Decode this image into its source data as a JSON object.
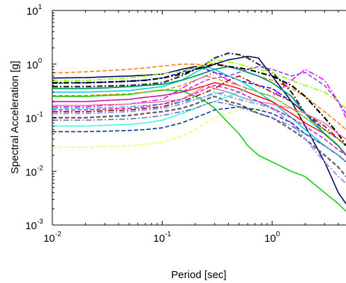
{
  "chart_data": {
    "type": "line",
    "title": "",
    "xlabel": "Period [sec]",
    "ylabel": "Spectral Acceleration [g]",
    "xscale": "log",
    "yscale": "log",
    "xlim": [
      0.01,
      4.7
    ],
    "ylim": [
      0.001,
      10
    ],
    "grid": false,
    "legend": "none",
    "x_ticks": [
      {
        "value": 0.01,
        "base": "10",
        "exp": "-2"
      },
      {
        "value": 0.1,
        "base": "10",
        "exp": "-1"
      },
      {
        "value": 1,
        "base": "10",
        "exp": "0"
      }
    ],
    "y_ticks": [
      {
        "value": 0.001,
        "base": "10",
        "exp": "-3"
      },
      {
        "value": 0.01,
        "base": "10",
        "exp": "-2"
      },
      {
        "value": 0.1,
        "base": "10",
        "exp": "-1"
      },
      {
        "value": 1,
        "base": "10",
        "exp": "0"
      },
      {
        "value": 10,
        "base": "10",
        "exp": "1"
      }
    ],
    "x": [
      0.01,
      0.02,
      0.03,
      0.05,
      0.07,
      0.1,
      0.15,
      0.2,
      0.25,
      0.3,
      0.4,
      0.5,
      0.6,
      0.75,
      1.0,
      1.5,
      2.0,
      3.0,
      4.0,
      4.7
    ],
    "series": [
      {
        "color": "#ff8000",
        "style": "dash",
        "width": 1.6,
        "values": [
          0.68,
          0.72,
          0.75,
          0.8,
          0.85,
          0.92,
          1.0,
          1.0,
          0.95,
          1.05,
          0.9,
          0.8,
          0.7,
          0.6,
          0.5,
          0.35,
          0.25,
          0.13,
          0.08,
          0.06
        ]
      },
      {
        "color": "#000066",
        "style": "solid",
        "width": 1.6,
        "values": [
          0.55,
          0.56,
          0.58,
          0.6,
          0.62,
          0.65,
          0.8,
          0.9,
          0.85,
          1.0,
          1.2,
          1.3,
          1.4,
          1.3,
          0.6,
          0.2,
          0.07,
          0.015,
          0.004,
          0.0025
        ]
      },
      {
        "color": "#00cc00",
        "style": "solid",
        "width": 1.5,
        "values": [
          0.25,
          0.25,
          0.26,
          0.27,
          0.3,
          0.33,
          0.32,
          0.25,
          0.2,
          0.15,
          0.08,
          0.05,
          0.03,
          0.02,
          0.015,
          0.01,
          0.008,
          0.004,
          0.0025,
          0.0018
        ]
      },
      {
        "color": "#e6ff66",
        "style": "dash",
        "width": 1.5,
        "values": [
          0.028,
          0.028,
          0.029,
          0.03,
          0.032,
          0.035,
          0.045,
          0.06,
          0.08,
          0.1,
          0.12,
          0.14,
          0.15,
          0.15,
          0.14,
          0.12,
          0.1,
          0.06,
          0.03,
          0.02
        ]
      },
      {
        "color": "#2b2b2b",
        "style": "dashdot",
        "width": 2.2,
        "values": [
          0.38,
          0.38,
          0.39,
          0.4,
          0.42,
          0.45,
          0.6,
          0.8,
          1.0,
          1.3,
          1.6,
          1.5,
          1.3,
          1.0,
          0.7,
          0.3,
          0.12,
          0.05,
          0.03,
          0.02
        ]
      },
      {
        "color": "#0000ff",
        "style": "dash",
        "width": 1.6,
        "values": [
          0.44,
          0.45,
          0.46,
          0.48,
          0.5,
          0.55,
          0.7,
          0.9,
          0.8,
          0.7,
          0.6,
          0.5,
          0.45,
          0.4,
          0.35,
          0.2,
          0.12,
          0.06,
          0.04,
          0.03
        ]
      },
      {
        "color": "#ff00ff",
        "style": "dashdot",
        "width": 1.6,
        "values": [
          0.16,
          0.16,
          0.17,
          0.18,
          0.2,
          0.22,
          0.35,
          0.5,
          0.6,
          0.7,
          0.5,
          0.4,
          0.35,
          0.3,
          0.25,
          0.5,
          0.8,
          0.5,
          0.2,
          0.1
        ]
      },
      {
        "color": "#00cccc",
        "style": "solid",
        "width": 1.5,
        "values": [
          0.3,
          0.3,
          0.31,
          0.32,
          0.35,
          0.38,
          0.5,
          0.7,
          0.9,
          0.8,
          0.6,
          0.5,
          0.4,
          0.3,
          0.2,
          0.1,
          0.06,
          0.03,
          0.02,
          0.015
        ]
      },
      {
        "color": "#ff0000",
        "style": "solid",
        "width": 1.5,
        "values": [
          0.2,
          0.2,
          0.21,
          0.22,
          0.24,
          0.26,
          0.3,
          0.35,
          0.4,
          0.45,
          0.4,
          0.35,
          0.3,
          0.25,
          0.2,
          0.12,
          0.08,
          0.05,
          0.03,
          0.02
        ]
      },
      {
        "color": "#666666",
        "style": "dash",
        "width": 2.4,
        "values": [
          0.1,
          0.1,
          0.105,
          0.11,
          0.12,
          0.13,
          0.15,
          0.18,
          0.22,
          0.25,
          0.2,
          0.18,
          0.15,
          0.12,
          0.1,
          0.06,
          0.04,
          0.02,
          0.012,
          0.008
        ]
      },
      {
        "color": "#9999ff",
        "style": "dashdot",
        "width": 2.2,
        "values": [
          0.12,
          0.12,
          0.125,
          0.13,
          0.14,
          0.15,
          0.18,
          0.22,
          0.25,
          0.3,
          0.25,
          0.22,
          0.2,
          0.18,
          0.15,
          0.08,
          0.04,
          0.015,
          0.008,
          0.006
        ]
      },
      {
        "color": "#99ff00",
        "style": "dashdot",
        "width": 1.8,
        "values": [
          0.5,
          0.5,
          0.52,
          0.55,
          0.6,
          0.65,
          0.75,
          0.85,
          1.0,
          1.2,
          1.1,
          1.0,
          0.9,
          0.8,
          0.7,
          0.5,
          0.4,
          0.3,
          0.2,
          0.15
        ]
      },
      {
        "color": "#9933ff",
        "style": "dash",
        "width": 1.6,
        "values": [
          0.2,
          0.2,
          0.21,
          0.22,
          0.24,
          0.26,
          0.3,
          0.4,
          0.5,
          0.55,
          0.6,
          0.7,
          0.8,
          0.9,
          0.8,
          0.6,
          0.7,
          0.4,
          0.2,
          0.12
        ]
      },
      {
        "color": "#003399",
        "style": "dash",
        "width": 1.6,
        "values": [
          0.055,
          0.055,
          0.056,
          0.058,
          0.06,
          0.065,
          0.08,
          0.1,
          0.12,
          0.14,
          0.15,
          0.16,
          0.15,
          0.14,
          0.12,
          0.08,
          0.05,
          0.03,
          0.02,
          0.015
        ]
      },
      {
        "color": "#33ffcc",
        "style": "solid",
        "width": 1.5,
        "values": [
          0.07,
          0.07,
          0.072,
          0.075,
          0.08,
          0.09,
          0.12,
          0.15,
          0.18,
          0.2,
          0.25,
          0.3,
          0.35,
          0.3,
          0.25,
          0.15,
          0.1,
          0.05,
          0.03,
          0.02
        ]
      },
      {
        "color": "#990000",
        "style": "dashdot",
        "width": 1.6,
        "values": [
          0.13,
          0.13,
          0.135,
          0.14,
          0.15,
          0.16,
          0.2,
          0.25,
          0.3,
          0.35,
          0.5,
          0.6,
          0.5,
          0.4,
          0.3,
          0.2,
          0.12,
          0.07,
          0.04,
          0.03
        ]
      },
      {
        "color": "#009966",
        "style": "solid",
        "width": 1.8,
        "values": [
          0.35,
          0.35,
          0.36,
          0.38,
          0.4,
          0.42,
          0.5,
          0.6,
          0.7,
          0.8,
          0.9,
          0.8,
          0.7,
          0.6,
          0.45,
          0.25,
          0.12,
          0.05,
          0.03,
          0.02
        ]
      },
      {
        "color": "#000000",
        "style": "dashdot",
        "width": 2.2,
        "values": [
          0.45,
          0.45,
          0.46,
          0.48,
          0.5,
          0.55,
          0.65,
          0.8,
          0.9,
          1.0,
          0.9,
          0.85,
          0.8,
          0.7,
          0.6,
          0.4,
          0.25,
          0.1,
          0.05,
          0.03
        ]
      },
      {
        "color": "#ff6699",
        "style": "solid",
        "width": 1.4,
        "values": [
          0.17,
          0.17,
          0.175,
          0.18,
          0.19,
          0.2,
          0.22,
          0.3,
          0.4,
          0.35,
          0.3,
          0.25,
          0.22,
          0.2,
          0.18,
          0.15,
          0.12,
          0.08,
          0.05,
          0.04
        ]
      },
      {
        "color": "#33cccc",
        "style": "dashdot",
        "width": 1.8,
        "values": [
          0.15,
          0.15,
          0.155,
          0.16,
          0.17,
          0.18,
          0.2,
          0.22,
          0.25,
          0.28,
          0.3,
          0.25,
          0.22,
          0.2,
          0.15,
          0.1,
          0.06,
          0.03,
          0.02,
          0.015
        ]
      },
      {
        "color": "#cc9900",
        "style": "dash",
        "width": 1.5,
        "values": [
          0.26,
          0.26,
          0.27,
          0.28,
          0.3,
          0.32,
          0.4,
          0.5,
          0.6,
          0.55,
          0.45,
          0.4,
          0.35,
          0.3,
          0.25,
          0.15,
          0.1,
          0.06,
          0.04,
          0.03
        ]
      },
      {
        "color": "#6666cc",
        "style": "dashdot",
        "width": 1.6,
        "values": [
          0.09,
          0.09,
          0.092,
          0.095,
          0.1,
          0.11,
          0.13,
          0.15,
          0.18,
          0.2,
          0.18,
          0.16,
          0.14,
          0.12,
          0.1,
          0.07,
          0.05,
          0.03,
          0.02,
          0.015
        ]
      },
      {
        "color": "#cc00cc",
        "style": "dash",
        "width": 1.4,
        "values": [
          0.14,
          0.14,
          0.145,
          0.15,
          0.16,
          0.18,
          0.22,
          0.28,
          0.35,
          0.4,
          0.35,
          0.3,
          0.25,
          0.2,
          0.15,
          0.1,
          0.07,
          0.04,
          0.025,
          0.02
        ]
      }
    ]
  }
}
